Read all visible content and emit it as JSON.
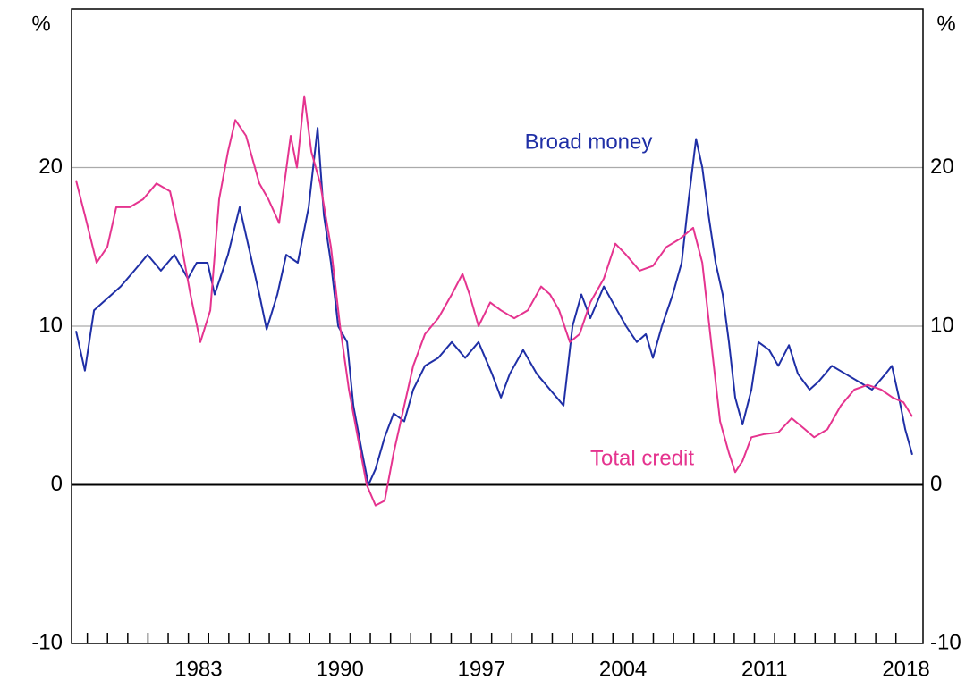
{
  "chart_data": {
    "type": "line",
    "y_unit": "%",
    "y2_unit": "%",
    "xlim": [
      1977.22,
      2019.34
    ],
    "xticks": [
      {
        "value": 1983.5,
        "label": "1983"
      },
      {
        "value": 1990.5,
        "label": "1990"
      },
      {
        "value": 1997.5,
        "label": "1997"
      },
      {
        "value": 2004.5,
        "label": "2004"
      },
      {
        "value": 2011.5,
        "label": "2011"
      },
      {
        "value": 2018.5,
        "label": "2018"
      }
    ],
    "xminor_ticks": [
      1978,
      1979,
      1980,
      1981,
      1982,
      1983,
      1984,
      1985,
      1986,
      1987,
      1988,
      1989,
      1990,
      1991,
      1992,
      1993,
      1994,
      1995,
      1996,
      1997,
      1998,
      1999,
      2000,
      2001,
      2002,
      2003,
      2004,
      2005,
      2006,
      2007,
      2008,
      2009,
      2010,
      2011,
      2012,
      2013,
      2014,
      2015,
      2016,
      2017,
      2018
    ],
    "ylim": [
      -10,
      30
    ],
    "yticks": [
      -10,
      0,
      10,
      20
    ],
    "y2lim": [
      -10,
      30
    ],
    "y2ticks": [
      -10,
      0,
      10,
      20
    ],
    "grid": true,
    "series": [
      {
        "name": "Broad money",
        "color": "#1f2fa6",
        "x": [
          1977.44,
          1977.88,
          1978.33,
          1978.77,
          1979.21,
          1979.65,
          1980.32,
          1980.98,
          1981.64,
          1982.31,
          1982.97,
          1983.41,
          1983.95,
          1984.3,
          1984.96,
          1985.54,
          1986.07,
          1986.51,
          1986.87,
          1987.4,
          1987.84,
          1988.41,
          1988.95,
          1989.39,
          1989.7,
          1990.05,
          1990.41,
          1990.85,
          1991.16,
          1991.6,
          1991.91,
          1992.26,
          1992.71,
          1993.15,
          1993.68,
          1994.12,
          1994.7,
          1995.36,
          1996.03,
          1996.69,
          1997.35,
          1998.02,
          1998.46,
          1998.9,
          1999.56,
          2000.23,
          2000.89,
          2001.56,
          2002.0,
          2002.44,
          2002.88,
          2003.55,
          2004.21,
          2004.65,
          2005.18,
          2005.63,
          2005.98,
          2006.42,
          2006.96,
          2007.4,
          2007.75,
          2008.11,
          2008.42,
          2008.73,
          2009.08,
          2009.43,
          2009.74,
          2010.05,
          2010.41,
          2010.85,
          2011.2,
          2011.73,
          2012.18,
          2012.71,
          2013.15,
          2013.73,
          2014.17,
          2014.83,
          2015.5,
          2016.16,
          2016.82,
          2017.49,
          2017.8,
          2018.15,
          2018.46,
          2018.81
        ],
        "values": [
          9.7,
          7.2,
          11,
          11.5,
          12,
          12.5,
          13.5,
          14.5,
          13.5,
          14.5,
          13,
          14,
          14,
          12,
          14.5,
          17.5,
          14.5,
          12,
          9.8,
          12,
          14.5,
          14,
          17.5,
          22.5,
          17,
          14,
          10,
          9,
          5,
          2,
          0,
          1,
          3,
          4.5,
          4,
          6,
          7.5,
          8,
          9,
          8,
          9,
          7,
          5.5,
          7,
          8.5,
          7,
          6,
          5,
          10,
          12,
          10.5,
          12.5,
          11,
          10,
          9,
          9.5,
          8,
          10,
          12,
          14,
          18,
          21.8,
          20,
          17,
          14,
          12,
          9,
          5.5,
          3.8,
          6,
          9,
          8.5,
          7.5,
          8.8,
          7,
          6,
          6.5,
          7.5,
          7,
          6.5,
          6,
          7,
          7.5,
          5.5,
          3.5,
          1.9
        ]
      },
      {
        "name": "Total credit",
        "color": "#e5348f",
        "x": [
          1977.44,
          1977.88,
          1978.46,
          1978.99,
          1979.43,
          1980.1,
          1980.76,
          1981.42,
          1982.09,
          1982.53,
          1983.1,
          1983.59,
          1984.08,
          1984.52,
          1984.96,
          1985.32,
          1985.85,
          1986.51,
          1986.96,
          1987.49,
          1988.06,
          1988.37,
          1988.73,
          1989.08,
          1989.52,
          1990.05,
          1990.5,
          1990.94,
          1991.38,
          1991.82,
          1992.26,
          1992.71,
          1993.15,
          1993.68,
          1994.12,
          1994.7,
          1995.36,
          1996.03,
          1996.56,
          1996.91,
          1997.35,
          1997.93,
          1998.46,
          1999.12,
          1999.79,
          2000.45,
          2000.89,
          2001.34,
          2001.87,
          2002.35,
          2002.88,
          2003.55,
          2004.12,
          2004.65,
          2005.32,
          2005.98,
          2006.65,
          2007.31,
          2007.97,
          2008.42,
          2008.86,
          2009.3,
          2009.74,
          2010.05,
          2010.41,
          2010.85,
          2011.51,
          2012.18,
          2012.84,
          2013.5,
          2013.95,
          2014.61,
          2015.28,
          2015.94,
          2016.6,
          2017.27,
          2017.84,
          2018.37,
          2018.81
        ],
        "values": [
          19.2,
          17,
          14,
          15,
          17.5,
          17.5,
          18,
          19,
          18.5,
          16,
          12,
          9,
          11,
          18,
          21,
          23,
          22,
          19,
          18,
          16.5,
          22,
          20,
          24.5,
          21,
          19,
          15,
          10,
          6,
          3,
          0,
          -1.3,
          -1,
          2,
          5,
          7.5,
          9.5,
          10.5,
          12,
          13.3,
          12,
          10,
          11.5,
          11,
          10.5,
          11,
          12.5,
          12,
          11,
          9,
          9.5,
          11.5,
          13,
          15.2,
          14.5,
          13.5,
          13.8,
          15,
          15.5,
          16.2,
          14,
          9,
          4,
          2,
          0.8,
          1.5,
          3,
          3.2,
          3.3,
          4.2,
          3.5,
          3.0,
          3.5,
          5,
          6,
          6.3,
          6.0,
          5.5,
          5.2,
          4.3
        ]
      }
    ]
  }
}
